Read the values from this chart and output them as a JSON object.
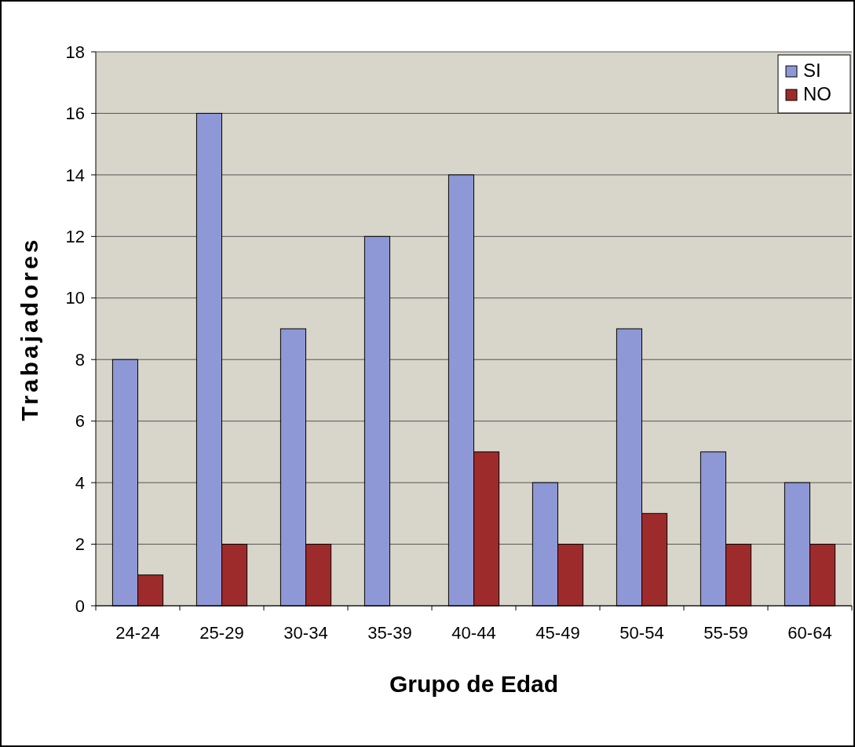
{
  "chart_data": {
    "type": "bar",
    "xlabel": "Grupo de Edad",
    "ylabel": "Trabajadores",
    "categories": [
      "24-24",
      "25-29",
      "30-34",
      "35-39",
      "40-44",
      "45-49",
      "50-54",
      "55-59",
      "60-64"
    ],
    "series": [
      {
        "name": "SI",
        "color": "#8e98d6",
        "values": [
          8,
          16,
          9,
          12,
          14,
          4,
          9,
          5,
          4
        ]
      },
      {
        "name": "NO",
        "color": "#9e2b2b",
        "values": [
          1,
          2,
          2,
          0,
          5,
          2,
          3,
          2,
          2
        ]
      }
    ],
    "ylim": [
      0,
      18
    ],
    "yticks": [
      0,
      2,
      4,
      6,
      8,
      10,
      12,
      14,
      16,
      18
    ],
    "grid": "y",
    "legend": "top right"
  }
}
